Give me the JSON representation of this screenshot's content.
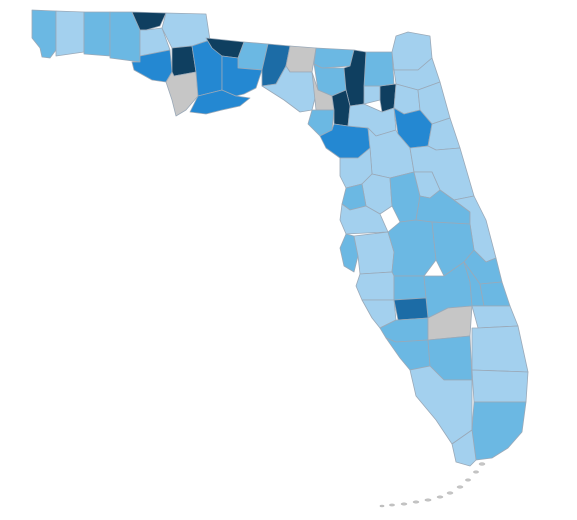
{
  "map": {
    "region": "Florida",
    "colors": {
      "no_data": "#c6c6c6",
      "level1": "#a3d0ee",
      "level2": "#6bb8e3",
      "level3": "#2488d2",
      "level4": "#1c6ca6",
      "level5": "#0f3f60"
    },
    "counties": [
      {
        "id": "escambia",
        "level": "level2"
      },
      {
        "id": "santa-rosa",
        "level": "level1"
      },
      {
        "id": "okaloosa",
        "level": "level2"
      },
      {
        "id": "walton",
        "level": "level2"
      },
      {
        "id": "holmes",
        "level": "level5"
      },
      {
        "id": "washington",
        "level": "level1"
      },
      {
        "id": "jackson",
        "level": "level1"
      },
      {
        "id": "bay",
        "level": "level3"
      },
      {
        "id": "calhoun",
        "level": "level5"
      },
      {
        "id": "gulf",
        "level": "no_data"
      },
      {
        "id": "liberty",
        "level": "level3"
      },
      {
        "id": "franklin",
        "level": "level3"
      },
      {
        "id": "gadsden",
        "level": "level5"
      },
      {
        "id": "leon",
        "level": "level2"
      },
      {
        "id": "wakulla",
        "level": "level3"
      },
      {
        "id": "jefferson",
        "level": "level4"
      },
      {
        "id": "madison",
        "level": "no_data"
      },
      {
        "id": "taylor",
        "level": "level1"
      },
      {
        "id": "hamilton",
        "level": "level2"
      },
      {
        "id": "suwannee",
        "level": "level2"
      },
      {
        "id": "lafayette",
        "level": "no_data"
      },
      {
        "id": "dixie",
        "level": "level2"
      },
      {
        "id": "columbia",
        "level": "level5"
      },
      {
        "id": "gilchrist",
        "level": "level5"
      },
      {
        "id": "levy",
        "level": "level3"
      },
      {
        "id": "union",
        "level": "level1"
      },
      {
        "id": "bradford",
        "level": "level5"
      },
      {
        "id": "baker",
        "level": "level2"
      },
      {
        "id": "nassau",
        "level": "level1"
      },
      {
        "id": "duval",
        "level": "level1"
      },
      {
        "id": "clay",
        "level": "level1"
      },
      {
        "id": "st-johns",
        "level": "level1"
      },
      {
        "id": "alachua",
        "level": "level1"
      },
      {
        "id": "putnam",
        "level": "level3"
      },
      {
        "id": "flagler",
        "level": "level1"
      },
      {
        "id": "marion",
        "level": "level1"
      },
      {
        "id": "volusia",
        "level": "level1"
      },
      {
        "id": "citrus",
        "level": "level1"
      },
      {
        "id": "sumter",
        "level": "level1"
      },
      {
        "id": "lake",
        "level": "level2"
      },
      {
        "id": "hernando",
        "level": "level2"
      },
      {
        "id": "pasco",
        "level": "level1"
      },
      {
        "id": "seminole",
        "level": "level1"
      },
      {
        "id": "orange",
        "level": "level2"
      },
      {
        "id": "brevard",
        "level": "level1"
      },
      {
        "id": "pinellas",
        "level": "level2"
      },
      {
        "id": "hillsborough",
        "level": "level1"
      },
      {
        "id": "polk",
        "level": "level2"
      },
      {
        "id": "osceola",
        "level": "level2"
      },
      {
        "id": "indian-river",
        "level": "level2"
      },
      {
        "id": "manatee",
        "level": "level1"
      },
      {
        "id": "hardee",
        "level": "level2"
      },
      {
        "id": "highlands",
        "level": "level2"
      },
      {
        "id": "okeechobee",
        "level": "level2"
      },
      {
        "id": "st-lucie",
        "level": "level2"
      },
      {
        "id": "sarasota",
        "level": "level1"
      },
      {
        "id": "desoto",
        "level": "level4"
      },
      {
        "id": "martin",
        "level": "level1"
      },
      {
        "id": "charlotte",
        "level": "level2"
      },
      {
        "id": "glades",
        "level": "no_data"
      },
      {
        "id": "lee",
        "level": "level2"
      },
      {
        "id": "hendry",
        "level": "level2"
      },
      {
        "id": "palm-beach",
        "level": "level1"
      },
      {
        "id": "collier",
        "level": "level1"
      },
      {
        "id": "broward",
        "level": "level1"
      },
      {
        "id": "miami-dade",
        "level": "level2"
      },
      {
        "id": "monroe-mainland",
        "level": "level1"
      }
    ]
  }
}
